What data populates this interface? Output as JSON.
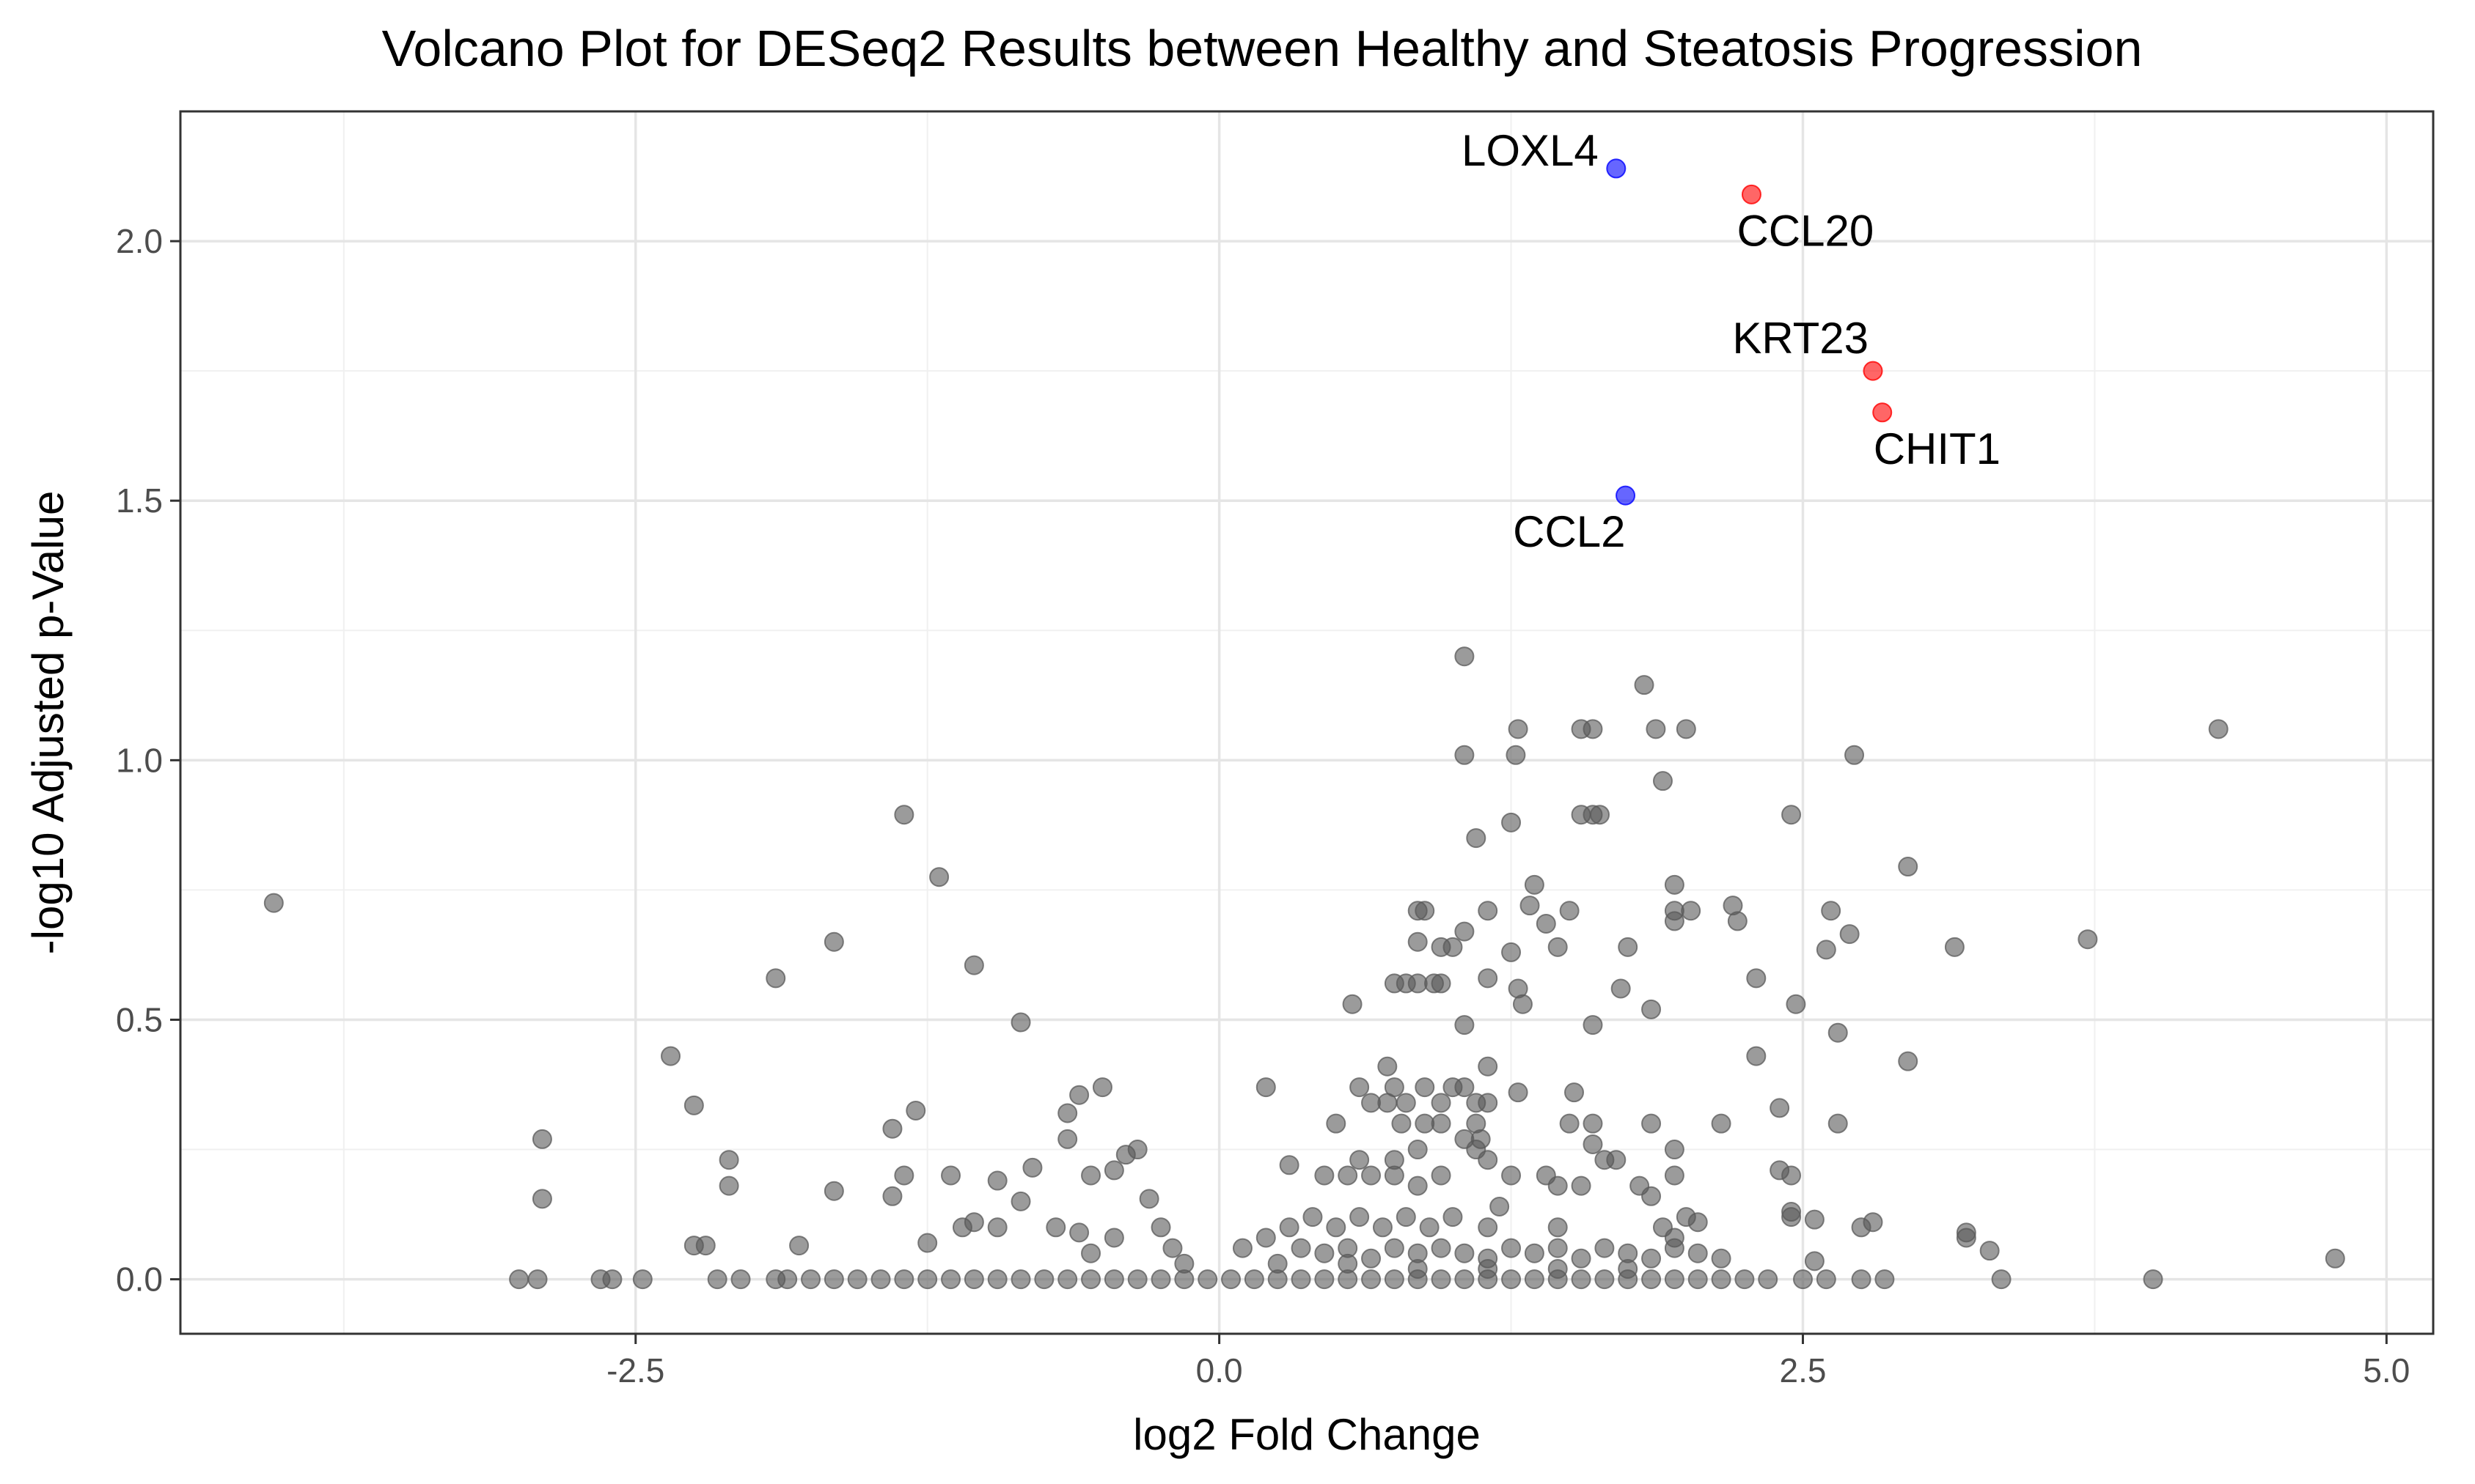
{
  "chart_data": {
    "type": "scatter",
    "title": "Volcano Plot for DESeq2 Results between Healthy and Steatosis Progression",
    "xlabel": "log2 Fold Change",
    "ylabel": "-log10 Adjusted p-Value",
    "xlim": [
      -4.45,
      5.2
    ],
    "ylim": [
      -0.105,
      2.25
    ],
    "x_ticks": [
      -2.5,
      0.0,
      2.5,
      5.0
    ],
    "x_tick_labels": [
      "-2.5",
      "0.0",
      "2.5",
      "5.0"
    ],
    "y_ticks": [
      0.0,
      0.5,
      1.0,
      1.5,
      2.0
    ],
    "y_tick_labels": [
      "0.0",
      "0.5",
      "1.0",
      "1.5",
      "2.0"
    ],
    "grid": true,
    "legend": "none",
    "colors": {
      "not_significant": "#595959",
      "up": "#ff0000",
      "down": "#0000ff",
      "grid_major": "#e5e5e5",
      "grid_minor": "#f0f0f0",
      "panel_border": "#333333"
    },
    "highlighted_genes": [
      {
        "gene": "LOXL4",
        "x": 1.7,
        "y": 2.14,
        "group": "down"
      },
      {
        "gene": "CCL20",
        "x": 2.28,
        "y": 2.09,
        "group": "up"
      },
      {
        "gene": "KRT23",
        "x": 2.8,
        "y": 1.75,
        "group": "up"
      },
      {
        "gene": "CHIT1",
        "x": 2.84,
        "y": 1.67,
        "group": "up"
      },
      {
        "gene": "CCL2",
        "x": 1.74,
        "y": 1.51,
        "group": "down"
      }
    ],
    "background_points": [
      [
        -4.05,
        0.725
      ],
      [
        -2.9,
        0.27
      ],
      [
        -2.9,
        0.155
      ],
      [
        -2.35,
        0.43
      ],
      [
        -2.25,
        0.335
      ],
      [
        -2.1,
        0.23
      ],
      [
        -2.1,
        0.18
      ],
      [
        -2.25,
        0.065
      ],
      [
        -2.2,
        0.065
      ],
      [
        -1.9,
        0.58
      ],
      [
        -1.65,
        0.65
      ],
      [
        -1.65,
        0.17
      ],
      [
        -1.8,
        0.065
      ],
      [
        -1.35,
        0.895
      ],
      [
        -1.2,
        0.775
      ],
      [
        -1.05,
        0.605
      ],
      [
        -0.85,
        0.495
      ],
      [
        -1.4,
        0.29
      ],
      [
        -1.3,
        0.325
      ],
      [
        -1.35,
        0.2
      ],
      [
        -1.15,
        0.2
      ],
      [
        -1.1,
        0.1
      ],
      [
        -1.05,
        0.11
      ],
      [
        -0.95,
        0.19
      ],
      [
        -0.8,
        0.215
      ],
      [
        -0.6,
        0.355
      ],
      [
        -0.65,
        0.32
      ],
      [
        -0.65,
        0.27
      ],
      [
        -0.5,
        0.37
      ],
      [
        -0.45,
        0.21
      ],
      [
        -0.4,
        0.24
      ],
      [
        -0.55,
        0.2
      ],
      [
        -0.35,
        0.25
      ],
      [
        -0.3,
        0.155
      ],
      [
        -0.25,
        0.1
      ],
      [
        -0.85,
        0.15
      ],
      [
        -0.7,
        0.1
      ],
      [
        -0.6,
        0.09
      ],
      [
        -1.25,
        0.07
      ],
      [
        -1.4,
        0.16
      ],
      [
        -0.95,
        0.1
      ],
      [
        -0.55,
        0.05
      ],
      [
        -0.45,
        0.08
      ],
      [
        -0.2,
        0.06
      ],
      [
        -0.15,
        0.03
      ],
      [
        -3.0,
        0.0
      ],
      [
        -2.92,
        0.0
      ],
      [
        -2.65,
        0.0
      ],
      [
        -2.6,
        0.0
      ],
      [
        -2.47,
        0.0
      ],
      [
        -2.15,
        0.0
      ],
      [
        -2.05,
        0.0
      ],
      [
        -1.9,
        0.0
      ],
      [
        -1.85,
        0.0
      ],
      [
        -1.75,
        0.0
      ],
      [
        -1.65,
        0.0
      ],
      [
        -1.55,
        0.0
      ],
      [
        -1.45,
        0.0
      ],
      [
        -1.35,
        0.0
      ],
      [
        -1.25,
        0.0
      ],
      [
        -1.15,
        0.0
      ],
      [
        -1.05,
        0.0
      ],
      [
        -0.95,
        0.0
      ],
      [
        -0.85,
        0.0
      ],
      [
        -0.75,
        0.0
      ],
      [
        -0.65,
        0.0
      ],
      [
        -0.55,
        0.0
      ],
      [
        -0.45,
        0.0
      ],
      [
        -0.35,
        0.0
      ],
      [
        -0.25,
        0.0
      ],
      [
        -0.15,
        0.0
      ],
      [
        -0.05,
        0.0
      ],
      [
        0.05,
        0.0
      ],
      [
        0.15,
        0.0
      ],
      [
        0.25,
        0.0
      ],
      [
        0.35,
        0.0
      ],
      [
        0.45,
        0.0
      ],
      [
        0.55,
        0.0
      ],
      [
        0.65,
        0.0
      ],
      [
        0.75,
        0.0
      ],
      [
        0.85,
        0.0
      ],
      [
        0.95,
        0.0
      ],
      [
        1.05,
        0.0
      ],
      [
        1.15,
        0.0
      ],
      [
        1.25,
        0.0
      ],
      [
        1.35,
        0.0
      ],
      [
        1.45,
        0.0
      ],
      [
        1.55,
        0.0
      ],
      [
        1.65,
        0.0
      ],
      [
        1.75,
        0.0
      ],
      [
        1.85,
        0.0
      ],
      [
        1.95,
        0.0
      ],
      [
        2.05,
        0.0
      ],
      [
        2.15,
        0.0
      ],
      [
        2.25,
        0.0
      ],
      [
        2.35,
        0.0
      ],
      [
        2.5,
        0.0
      ],
      [
        2.6,
        0.0
      ],
      [
        2.75,
        0.0
      ],
      [
        2.85,
        0.0
      ],
      [
        3.35,
        0.0
      ],
      [
        4.0,
        0.0
      ],
      [
        4.78,
        0.04
      ],
      [
        3.3,
        0.055
      ],
      [
        3.2,
        0.08
      ],
      [
        3.2,
        0.09
      ],
      [
        2.8,
        0.11
      ],
      [
        2.75,
        0.1
      ],
      [
        2.55,
        0.035
      ],
      [
        2.45,
        0.12
      ],
      [
        2.45,
        0.13
      ],
      [
        2.4,
        0.21
      ],
      [
        2.45,
        0.2
      ],
      [
        2.55,
        0.115
      ],
      [
        2.65,
        0.3
      ],
      [
        2.4,
        0.33
      ],
      [
        2.3,
        0.43
      ],
      [
        2.65,
        0.475
      ],
      [
        2.95,
        0.42
      ],
      [
        2.47,
        0.53
      ],
      [
        2.3,
        0.58
      ],
      [
        2.6,
        0.635
      ],
      [
        2.7,
        0.665
      ],
      [
        2.62,
        0.71
      ],
      [
        3.15,
        0.64
      ],
      [
        3.72,
        0.655
      ],
      [
        2.95,
        0.795
      ],
      [
        2.45,
        0.895
      ],
      [
        2.72,
        1.01
      ],
      [
        4.28,
        1.06
      ],
      [
        1.05,
        1.2
      ],
      [
        1.82,
        1.145
      ],
      [
        1.55,
        1.06
      ],
      [
        1.6,
        1.06
      ],
      [
        1.87,
        1.06
      ],
      [
        2.0,
        1.06
      ],
      [
        1.28,
        1.06
      ],
      [
        1.05,
        1.01
      ],
      [
        1.27,
        1.01
      ],
      [
        1.9,
        0.96
      ],
      [
        1.55,
        0.895
      ],
      [
        1.6,
        0.895
      ],
      [
        1.63,
        0.895
      ],
      [
        1.25,
        0.88
      ],
      [
        1.1,
        0.85
      ],
      [
        1.35,
        0.76
      ],
      [
        1.95,
        0.76
      ],
      [
        1.33,
        0.72
      ],
      [
        1.5,
        0.71
      ],
      [
        1.95,
        0.71
      ],
      [
        2.2,
        0.72
      ],
      [
        2.02,
        0.71
      ],
      [
        0.85,
        0.71
      ],
      [
        0.88,
        0.71
      ],
      [
        1.15,
        0.71
      ],
      [
        1.4,
        0.685
      ],
      [
        1.95,
        0.69
      ],
      [
        2.22,
        0.69
      ],
      [
        1.05,
        0.67
      ],
      [
        0.85,
        0.65
      ],
      [
        0.95,
        0.64
      ],
      [
        1.0,
        0.64
      ],
      [
        1.45,
        0.64
      ],
      [
        1.75,
        0.64
      ],
      [
        1.25,
        0.63
      ],
      [
        1.72,
        0.56
      ],
      [
        1.28,
        0.56
      ],
      [
        1.15,
        0.58
      ],
      [
        1.85,
        0.52
      ],
      [
        1.3,
        0.53
      ],
      [
        0.57,
        0.53
      ],
      [
        1.05,
        0.49
      ],
      [
        1.6,
        0.49
      ],
      [
        0.75,
        0.57
      ],
      [
        0.8,
        0.57
      ],
      [
        0.85,
        0.57
      ],
      [
        0.92,
        0.57
      ],
      [
        0.95,
        0.57
      ],
      [
        0.72,
        0.41
      ],
      [
        1.15,
        0.41
      ],
      [
        0.2,
        0.37
      ],
      [
        0.6,
        0.37
      ],
      [
        0.75,
        0.37
      ],
      [
        0.88,
        0.37
      ],
      [
        1.0,
        0.37
      ],
      [
        1.05,
        0.37
      ],
      [
        1.28,
        0.36
      ],
      [
        1.52,
        0.36
      ],
      [
        0.65,
        0.34
      ],
      [
        0.72,
        0.34
      ],
      [
        0.8,
        0.34
      ],
      [
        0.95,
        0.34
      ],
      [
        1.1,
        0.34
      ],
      [
        1.15,
        0.34
      ],
      [
        0.5,
        0.3
      ],
      [
        0.78,
        0.3
      ],
      [
        0.88,
        0.3
      ],
      [
        0.95,
        0.3
      ],
      [
        1.1,
        0.3
      ],
      [
        1.5,
        0.3
      ],
      [
        1.6,
        0.3
      ],
      [
        2.15,
        0.3
      ],
      [
        1.85,
        0.3
      ],
      [
        1.95,
        0.25
      ],
      [
        1.05,
        0.27
      ],
      [
        1.12,
        0.27
      ],
      [
        1.1,
        0.25
      ],
      [
        0.85,
        0.25
      ],
      [
        0.75,
        0.23
      ],
      [
        0.6,
        0.23
      ],
      [
        1.65,
        0.23
      ],
      [
        1.7,
        0.23
      ],
      [
        1.6,
        0.26
      ],
      [
        1.15,
        0.23
      ],
      [
        0.3,
        0.22
      ],
      [
        0.45,
        0.2
      ],
      [
        0.55,
        0.2
      ],
      [
        0.65,
        0.2
      ],
      [
        0.75,
        0.2
      ],
      [
        0.85,
        0.18
      ],
      [
        0.95,
        0.2
      ],
      [
        1.25,
        0.2
      ],
      [
        1.4,
        0.2
      ],
      [
        1.55,
        0.18
      ],
      [
        1.8,
        0.18
      ],
      [
        1.95,
        0.2
      ],
      [
        1.85,
        0.16
      ],
      [
        2.0,
        0.12
      ],
      [
        2.05,
        0.11
      ],
      [
        1.9,
        0.1
      ],
      [
        1.95,
        0.08
      ],
      [
        1.45,
        0.18
      ],
      [
        1.45,
        0.1
      ],
      [
        1.2,
        0.14
      ],
      [
        1.15,
        0.1
      ],
      [
        1.0,
        0.12
      ],
      [
        0.9,
        0.1
      ],
      [
        0.8,
        0.12
      ],
      [
        0.7,
        0.1
      ],
      [
        0.6,
        0.12
      ],
      [
        0.5,
        0.1
      ],
      [
        0.4,
        0.12
      ],
      [
        0.3,
        0.1
      ],
      [
        0.2,
        0.08
      ],
      [
        0.1,
        0.06
      ],
      [
        0.35,
        0.06
      ],
      [
        0.45,
        0.05
      ],
      [
        0.55,
        0.06
      ],
      [
        0.65,
        0.04
      ],
      [
        0.75,
        0.06
      ],
      [
        0.85,
        0.05
      ],
      [
        0.95,
        0.06
      ],
      [
        1.05,
        0.05
      ],
      [
        1.15,
        0.04
      ],
      [
        1.25,
        0.06
      ],
      [
        1.35,
        0.05
      ],
      [
        1.45,
        0.06
      ],
      [
        1.55,
        0.04
      ],
      [
        1.65,
        0.06
      ],
      [
        1.75,
        0.05
      ],
      [
        1.85,
        0.04
      ],
      [
        1.95,
        0.06
      ],
      [
        2.05,
        0.05
      ],
      [
        2.15,
        0.04
      ],
      [
        0.25,
        0.03
      ],
      [
        0.55,
        0.03
      ],
      [
        0.85,
        0.02
      ],
      [
        1.15,
        0.02
      ],
      [
        1.45,
        0.02
      ],
      [
        1.75,
        0.02
      ]
    ]
  }
}
